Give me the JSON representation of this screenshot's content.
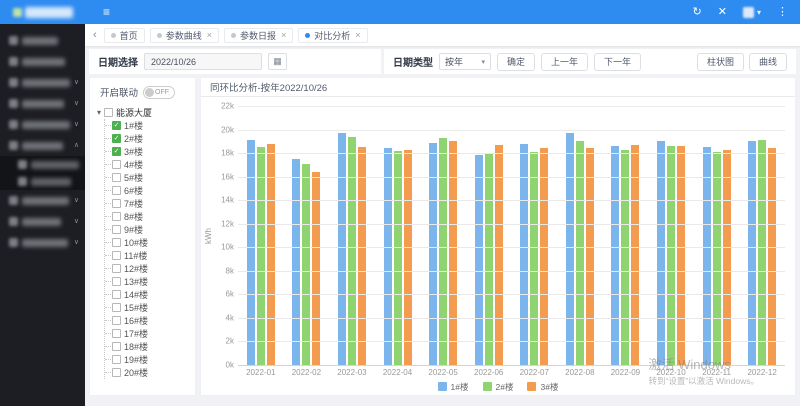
{
  "accent_color": "#2e8bf0",
  "header": {
    "icons": {
      "collapse": "≡",
      "refresh": "↻",
      "fullscreen": "✕",
      "avatar_caret": "▾",
      "more": "⋮"
    }
  },
  "sidebar": {
    "note": "menu labels blurred/redacted in screenshot",
    "items": [
      {
        "redacted": true,
        "chevron": null,
        "indent": false
      },
      {
        "redacted": true,
        "chevron": null,
        "indent": false
      },
      {
        "redacted": true,
        "chevron": "down",
        "indent": false
      },
      {
        "redacted": true,
        "chevron": "down",
        "indent": false
      },
      {
        "redacted": true,
        "chevron": "down",
        "indent": false
      },
      {
        "redacted": true,
        "chevron": "up",
        "indent": false
      },
      {
        "redacted": true,
        "chevron": null,
        "indent": true
      },
      {
        "redacted": true,
        "chevron": null,
        "indent": true
      },
      {
        "redacted": true,
        "chevron": "down",
        "indent": false
      },
      {
        "redacted": true,
        "chevron": "down",
        "indent": false
      },
      {
        "redacted": true,
        "chevron": "down",
        "indent": false
      }
    ]
  },
  "tabs": {
    "back_icon": "‹",
    "items": [
      {
        "label": "首页",
        "closable": false,
        "active": false
      },
      {
        "label": "参数曲线",
        "closable": true,
        "active": false
      },
      {
        "label": "参数日报",
        "closable": true,
        "active": false
      },
      {
        "label": "对比分析",
        "closable": true,
        "active": true
      }
    ],
    "close_icon": "×"
  },
  "toolbar": {
    "date_label": "日期选择",
    "date_value": "2022/10/26",
    "calendar_icon": "▦",
    "type_label": "日期类型",
    "type_value": "按年",
    "confirm_label": "确定",
    "prev_label": "上一年",
    "next_label": "下一年",
    "bar_chart_label": "柱状图",
    "curve_label": "曲线"
  },
  "tree_panel": {
    "linkage_label": "开启联动",
    "switch_state": "OFF",
    "root_label": "能源大厦",
    "root_checked": false,
    "items": [
      {
        "label": "1#楼",
        "checked": true
      },
      {
        "label": "2#楼",
        "checked": true
      },
      {
        "label": "3#楼",
        "checked": true
      },
      {
        "label": "4#楼",
        "checked": false
      },
      {
        "label": "5#楼",
        "checked": false
      },
      {
        "label": "6#楼",
        "checked": false
      },
      {
        "label": "7#楼",
        "checked": false
      },
      {
        "label": "8#楼",
        "checked": false
      },
      {
        "label": "9#楼",
        "checked": false
      },
      {
        "label": "10#楼",
        "checked": false
      },
      {
        "label": "11#楼",
        "checked": false
      },
      {
        "label": "12#楼",
        "checked": false
      },
      {
        "label": "13#楼",
        "checked": false
      },
      {
        "label": "14#楼",
        "checked": false
      },
      {
        "label": "15#楼",
        "checked": false
      },
      {
        "label": "16#楼",
        "checked": false
      },
      {
        "label": "17#楼",
        "checked": false
      },
      {
        "label": "18#楼",
        "checked": false
      },
      {
        "label": "19#楼",
        "checked": false
      },
      {
        "label": "20#楼",
        "checked": false
      }
    ]
  },
  "chart_data": {
    "type": "bar",
    "title": "同环比分析-按年2022/10/26",
    "ylabel": "kWh",
    "ylim": [
      0,
      22000
    ],
    "ytick_step": 2000,
    "ytick_suffix": "k",
    "grid": true,
    "legend_position": "bottom",
    "categories": [
      "2022-01",
      "2022-02",
      "2022-03",
      "2022-04",
      "2022-05",
      "2022-06",
      "2022-07",
      "2022-08",
      "2022-09",
      "2022-10",
      "2022-11",
      "2022-12"
    ],
    "series": [
      {
        "name": "1#楼",
        "color": "#7cb5ec",
        "values": [
          19100,
          17500,
          19700,
          18400,
          18900,
          17800,
          18800,
          19700,
          18600,
          19000,
          18500,
          19000
        ]
      },
      {
        "name": "2#楼",
        "color": "#8fd470",
        "values": [
          18500,
          17100,
          19400,
          18200,
          19300,
          18000,
          18100,
          19000,
          18300,
          18600,
          18100,
          19100
        ]
      },
      {
        "name": "3#楼",
        "color": "#f39c4f",
        "values": [
          18800,
          16400,
          18500,
          18300,
          19000,
          18700,
          18400,
          18400,
          18700,
          18600,
          18300,
          18400
        ]
      }
    ]
  },
  "watermark": {
    "line1": "激活 Windows",
    "line2": "转到“设置”以激活 Windows。"
  }
}
